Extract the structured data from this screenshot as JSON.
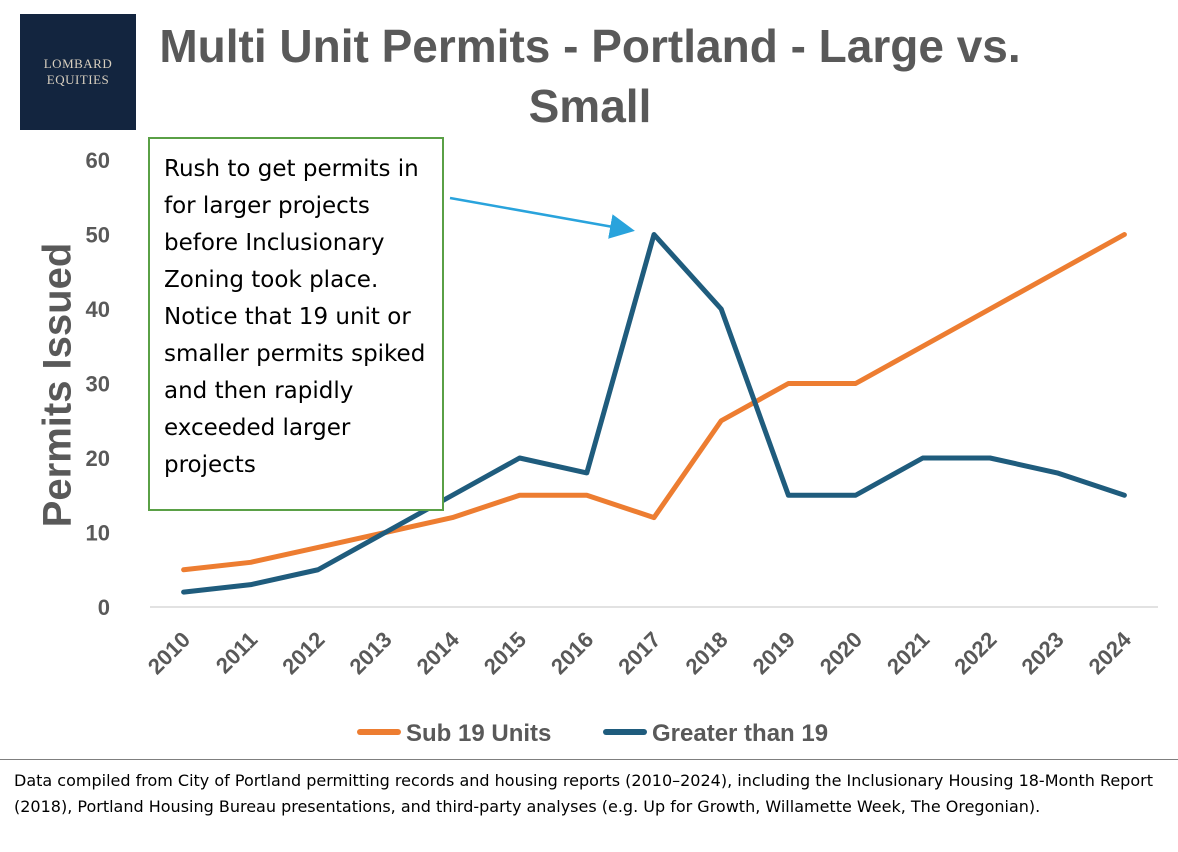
{
  "logo": {
    "line1": "LOMBARD",
    "line2": "EQUITIES"
  },
  "chart_data": {
    "type": "line",
    "title": "Multi Unit Permits - Portland - Large vs. Small",
    "xlabel": "",
    "ylabel": "Permits Issued",
    "categories": [
      "2010",
      "2011",
      "2012",
      "2013",
      "2014",
      "2015",
      "2016",
      "2017",
      "2018",
      "2019",
      "2020",
      "2021",
      "2022",
      "2023",
      "2024"
    ],
    "yticks": [
      0,
      10,
      20,
      30,
      40,
      50,
      60
    ],
    "ylim": [
      0,
      60
    ],
    "series": [
      {
        "name": "Sub 19 Units",
        "color": "#ed7d31",
        "values": [
          5,
          6,
          8,
          10,
          12,
          15,
          15,
          12,
          25,
          30,
          30,
          35,
          40,
          45,
          50
        ]
      },
      {
        "name": "Greater than 19",
        "color": "#1f5c7d",
        "values": [
          2,
          3,
          5,
          10,
          15,
          20,
          18,
          50,
          40,
          15,
          15,
          20,
          20,
          18,
          15
        ]
      }
    ],
    "annotation": "Rush to get permits in for larger projects before Inclusionary Zoning took place. Notice that 19 unit or smaller permits spiked and then rapidly exceeded larger projects",
    "annotation_arrow_color": "#29a3dc",
    "legend": "bottom"
  },
  "source_note": "Data compiled from City of Portland permitting records and housing reports (2010–2024), including the Inclusionary Housing 18-Month Report (2018), Portland Housing Bureau presentations, and third-party analyses (e.g. Up for Growth, Willamette Week, The Oregonian)."
}
